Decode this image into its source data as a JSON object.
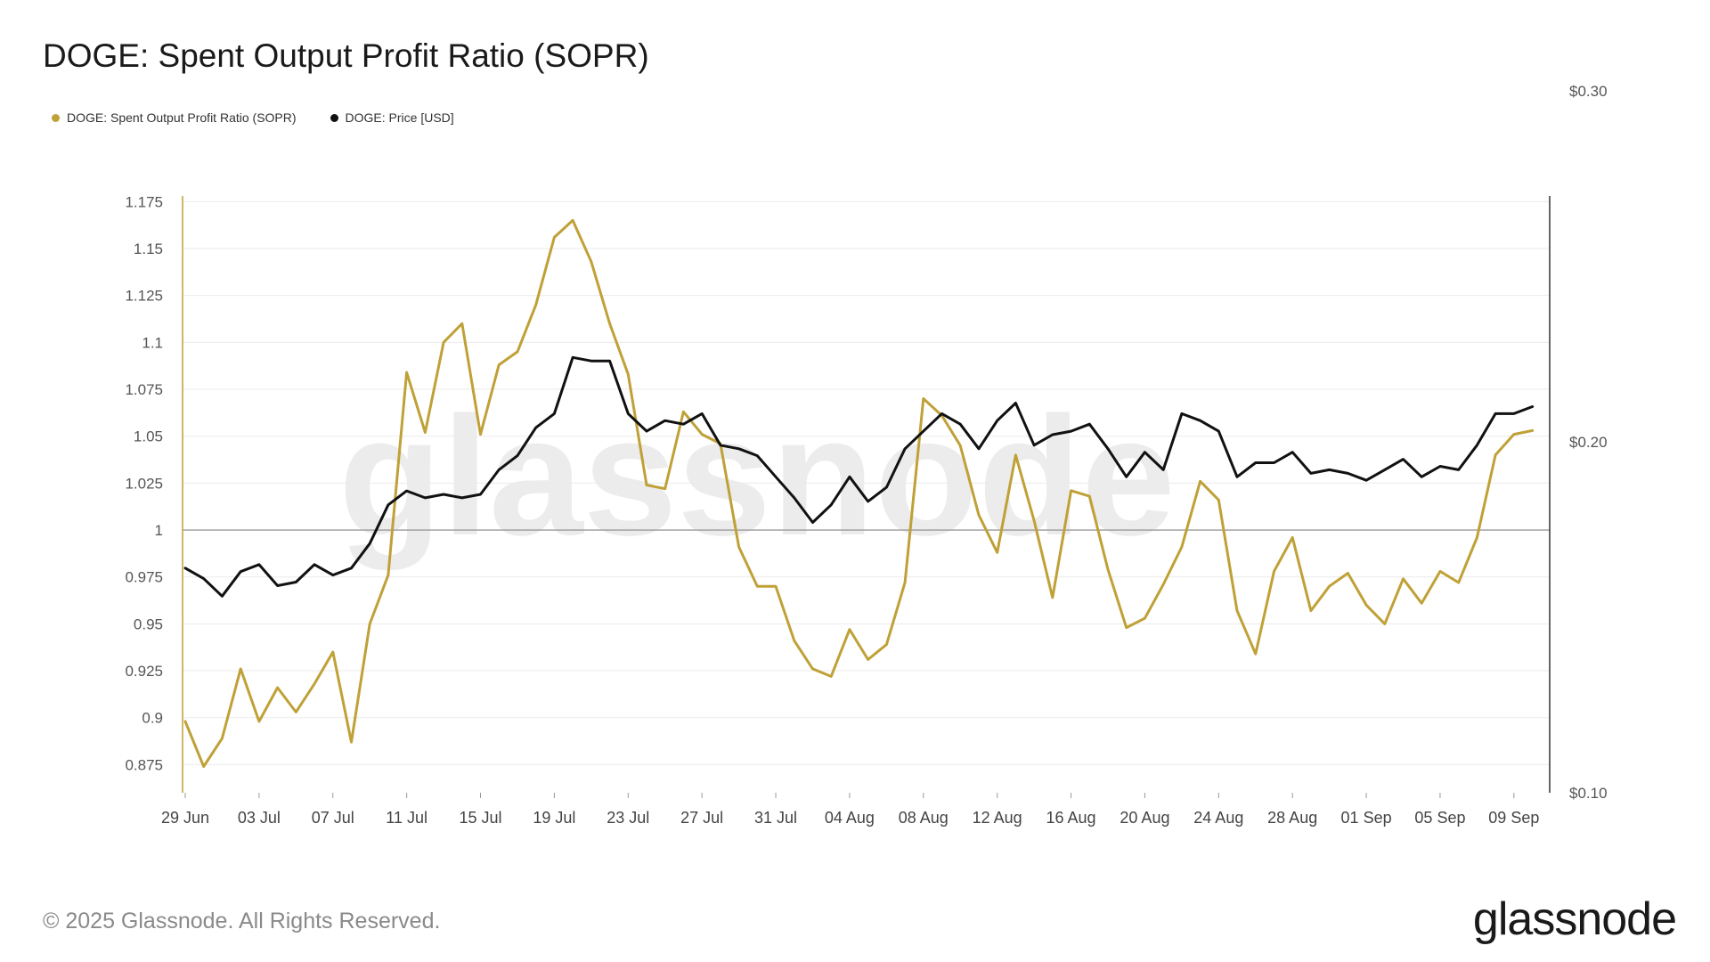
{
  "header": {
    "title": "DOGE: Spent Output Profit Ratio (SOPR)"
  },
  "legend": [
    {
      "label": "DOGE: Spent Output Profit Ratio (SOPR)",
      "color": "#bfa137"
    },
    {
      "label": "DOGE: Price [USD]",
      "color": "#111111"
    }
  ],
  "footer": {
    "copyright": "© 2025 Glassnode. All Rights Reserved.",
    "brand": "glassnode"
  },
  "watermark": "glassnode",
  "chart_data": {
    "type": "line",
    "title": "DOGE: Spent Output Profit Ratio (SOPR)",
    "x_tick_labels": [
      "29 Jun",
      "03 Jul",
      "07 Jul",
      "11 Jul",
      "15 Jul",
      "19 Jul",
      "23 Jul",
      "27 Jul",
      "31 Jul",
      "04 Aug",
      "08 Aug",
      "12 Aug",
      "16 Aug",
      "20 Aug",
      "24 Aug",
      "28 Aug",
      "01 Sep",
      "05 Sep",
      "09 Sep"
    ],
    "x_range": [
      "2025-06-29",
      "2025-09-10"
    ],
    "y_left": {
      "ticks": [
        "0.875",
        "0.9",
        "0.925",
        "0.95",
        "0.975",
        "1",
        "1.025",
        "1.05",
        "1.075",
        "1.1",
        "1.125",
        "1.15",
        "1.175"
      ],
      "range": [
        0.86,
        1.178
      ],
      "reference_line": 1
    },
    "y_right": {
      "ticks": [
        "$0.10",
        "$0.20",
        "$0.30"
      ],
      "range": [
        0.1,
        0.27
      ]
    },
    "grid": true,
    "legend_position": "top-left",
    "series": [
      {
        "name": "DOGE: Spent Output Profit Ratio (SOPR)",
        "axis": "left",
        "color": "#bfa137",
        "x": [
          "2025-06-29",
          "2025-06-30",
          "2025-07-01",
          "2025-07-02",
          "2025-07-03",
          "2025-07-04",
          "2025-07-05",
          "2025-07-06",
          "2025-07-07",
          "2025-07-08",
          "2025-07-09",
          "2025-07-10",
          "2025-07-11",
          "2025-07-12",
          "2025-07-13",
          "2025-07-14",
          "2025-07-15",
          "2025-07-16",
          "2025-07-17",
          "2025-07-18",
          "2025-07-19",
          "2025-07-20",
          "2025-07-21",
          "2025-07-22",
          "2025-07-23",
          "2025-07-24",
          "2025-07-25",
          "2025-07-26",
          "2025-07-27",
          "2025-07-28",
          "2025-07-29",
          "2025-07-30",
          "2025-07-31",
          "2025-08-01",
          "2025-08-02",
          "2025-08-03",
          "2025-08-04",
          "2025-08-05",
          "2025-08-06",
          "2025-08-07",
          "2025-08-08",
          "2025-08-09",
          "2025-08-10",
          "2025-08-11",
          "2025-08-12",
          "2025-08-13",
          "2025-08-14",
          "2025-08-15",
          "2025-08-16",
          "2025-08-17",
          "2025-08-18",
          "2025-08-19",
          "2025-08-20",
          "2025-08-21",
          "2025-08-22",
          "2025-08-23",
          "2025-08-24",
          "2025-08-25",
          "2025-08-26",
          "2025-08-27",
          "2025-08-28",
          "2025-08-29",
          "2025-08-30",
          "2025-08-31",
          "2025-09-01",
          "2025-09-02",
          "2025-09-03",
          "2025-09-04",
          "2025-09-05",
          "2025-09-06",
          "2025-09-07",
          "2025-09-08",
          "2025-09-09",
          "2025-09-10"
        ],
        "values": [
          0.898,
          0.874,
          0.889,
          0.926,
          0.898,
          0.916,
          0.903,
          0.918,
          0.935,
          0.887,
          0.95,
          0.976,
          1.084,
          1.052,
          1.1,
          1.11,
          1.051,
          1.088,
          1.095,
          1.12,
          1.156,
          1.165,
          1.143,
          1.11,
          1.083,
          1.024,
          1.022,
          1.063,
          1.051,
          1.046,
          0.991,
          0.97,
          0.97,
          0.941,
          0.926,
          0.922,
          0.947,
          0.931,
          0.939,
          0.972,
          1.07,
          1.061,
          1.045,
          1.008,
          0.988,
          1.04,
          1.005,
          0.964,
          1.021,
          1.018,
          0.979,
          0.948,
          0.953,
          0.971,
          0.991,
          1.026,
          1.016,
          0.957,
          0.934,
          0.978,
          0.996,
          0.957,
          0.97,
          0.977,
          0.96,
          0.95,
          0.974,
          0.961,
          0.978,
          0.972,
          0.996,
          1.04,
          1.051,
          1.053
        ]
      },
      {
        "name": "DOGE: Price [USD]",
        "axis": "right",
        "color": "#111111",
        "x": [
          "2025-06-29",
          "2025-06-30",
          "2025-07-01",
          "2025-07-02",
          "2025-07-03",
          "2025-07-04",
          "2025-07-05",
          "2025-07-06",
          "2025-07-07",
          "2025-07-08",
          "2025-07-09",
          "2025-07-10",
          "2025-07-11",
          "2025-07-12",
          "2025-07-13",
          "2025-07-14",
          "2025-07-15",
          "2025-07-16",
          "2025-07-17",
          "2025-07-18",
          "2025-07-19",
          "2025-07-20",
          "2025-07-21",
          "2025-07-22",
          "2025-07-23",
          "2025-07-24",
          "2025-07-25",
          "2025-07-26",
          "2025-07-27",
          "2025-07-28",
          "2025-07-29",
          "2025-07-30",
          "2025-07-31",
          "2025-08-01",
          "2025-08-02",
          "2025-08-03",
          "2025-08-04",
          "2025-08-05",
          "2025-08-06",
          "2025-08-07",
          "2025-08-08",
          "2025-08-09",
          "2025-08-10",
          "2025-08-11",
          "2025-08-12",
          "2025-08-13",
          "2025-08-14",
          "2025-08-15",
          "2025-08-16",
          "2025-08-17",
          "2025-08-18",
          "2025-08-19",
          "2025-08-20",
          "2025-08-21",
          "2025-08-22",
          "2025-08-23",
          "2025-08-24",
          "2025-08-25",
          "2025-08-26",
          "2025-08-27",
          "2025-08-28",
          "2025-08-29",
          "2025-08-30",
          "2025-08-31",
          "2025-09-01",
          "2025-09-02",
          "2025-09-03",
          "2025-09-04",
          "2025-09-05",
          "2025-09-06",
          "2025-09-07",
          "2025-09-08",
          "2025-09-09",
          "2025-09-10"
        ],
        "values": [
          0.164,
          0.161,
          0.156,
          0.163,
          0.165,
          0.159,
          0.16,
          0.165,
          0.162,
          0.164,
          0.171,
          0.182,
          0.186,
          0.184,
          0.185,
          0.184,
          0.185,
          0.192,
          0.196,
          0.204,
          0.208,
          0.224,
          0.223,
          0.223,
          0.208,
          0.203,
          0.206,
          0.205,
          0.208,
          0.199,
          0.198,
          0.196,
          0.19,
          0.184,
          0.177,
          0.182,
          0.19,
          0.183,
          0.187,
          0.198,
          0.203,
          0.208,
          0.205,
          0.198,
          0.206,
          0.211,
          0.199,
          0.202,
          0.203,
          0.205,
          0.198,
          0.19,
          0.197,
          0.192,
          0.208,
          0.206,
          0.203,
          0.19,
          0.194,
          0.194,
          0.197,
          0.191,
          0.192,
          0.191,
          0.189,
          0.192,
          0.195,
          0.19,
          0.193,
          0.192,
          0.199,
          0.208,
          0.208,
          0.21
        ]
      }
    ]
  }
}
